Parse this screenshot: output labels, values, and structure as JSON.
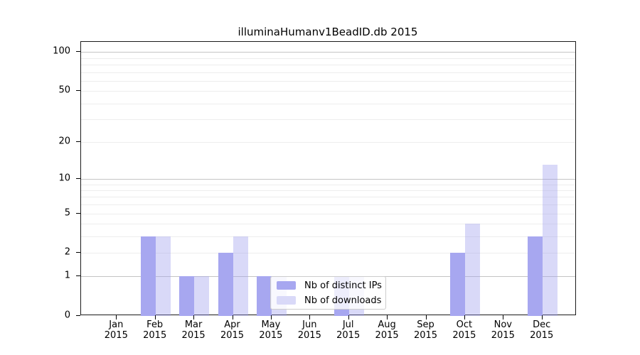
{
  "title": "illuminaHumanv1BeadID.db 2015",
  "colors": {
    "distinct_ips_bar": "#a7a7f0",
    "downloads_bar": "#d9d9f8",
    "downloads_bar_rgba": "rgba(160,160,238,0.4)",
    "major_gridline": "#c4c4c4",
    "minor_gridline": "#ededed",
    "axis": "#1a1a1a"
  },
  "legend": {
    "items": [
      {
        "id": "distinct-ips",
        "label": "Nb of distinct IPs",
        "color": "#a7a7f0"
      },
      {
        "id": "downloads",
        "label": "Nb of downloads",
        "color": "#d9d9f8"
      }
    ]
  },
  "x_axis": {
    "months": [
      "Jan",
      "Feb",
      "Mar",
      "Apr",
      "May",
      "Jun",
      "Jul",
      "Aug",
      "Sep",
      "Oct",
      "Nov",
      "Dec"
    ],
    "year": "2015"
  },
  "y_axis": {
    "tick_values": [
      0,
      1,
      2,
      5,
      10,
      20,
      50,
      100
    ],
    "minor_gridline_values": [
      2,
      3,
      4,
      5,
      6,
      7,
      8,
      9,
      20,
      30,
      40,
      50,
      60,
      70,
      80,
      90
    ],
    "major_gridline_values": [
      1,
      10,
      100
    ]
  },
  "chart_data": {
    "type": "bar",
    "title": "illuminaHumanv1BeadID.db 2015",
    "categories": [
      "Jan 2015",
      "Feb 2015",
      "Mar 2015",
      "Apr 2015",
      "May 2015",
      "Jun 2015",
      "Jul 2015",
      "Aug 2015",
      "Sep 2015",
      "Oct 2015",
      "Nov 2015",
      "Dec 2015"
    ],
    "series": [
      {
        "name": "Nb of distinct IPs",
        "color": "#a7a7f0",
        "values": [
          0,
          3,
          1,
          2,
          1,
          0,
          1,
          0,
          0,
          2,
          0,
          3
        ]
      },
      {
        "name": "Nb of downloads",
        "color": "#d9d9f8",
        "values": [
          0,
          3,
          1,
          3,
          1,
          0,
          1,
          0,
          0,
          4,
          0,
          13
        ]
      }
    ],
    "y_scale": "log10(value+1)",
    "y_ticks": [
      0,
      1,
      2,
      5,
      10,
      20,
      50,
      100
    ],
    "ylim": [
      0,
      119
    ],
    "grid": "horizontal log gridlines, minor + major(decades)",
    "legend_position": "inside lower-center"
  }
}
